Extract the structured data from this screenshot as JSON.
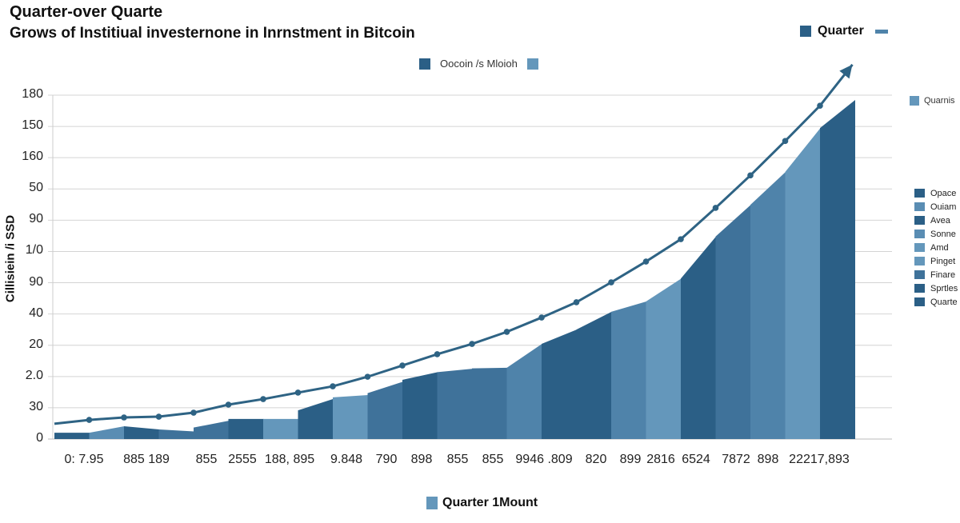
{
  "chart_data": {
    "type": "area",
    "title": "Quarter-over Quarte",
    "subtitle": "Grows of Institiual investernone in Inrnstment in Bitcoin",
    "ylabel": "Cillisiein /i SSD",
    "xlabel": "",
    "ylim": [
      0,
      180
    ],
    "grid": true,
    "y_tick_labels": [
      "180",
      "150",
      "160",
      "50",
      "90",
      "1/0",
      "90",
      "40",
      "20",
      "2.0",
      "30",
      "0"
    ],
    "x_tick_labels": [
      "0: 7.95",
      "885 189",
      "855",
      "2555",
      "188, 895",
      "9.848",
      "790",
      "898",
      "855",
      "855",
      "9946 .809",
      "820",
      "899",
      "2816",
      "6524",
      "7872",
      "898",
      "22217,893"
    ],
    "line_series": {
      "values": [
        8,
        10,
        11.3,
        11.7,
        13.8,
        18,
        20.9,
        24.3,
        27.6,
        32.6,
        38.5,
        44.4,
        49.8,
        56.1,
        63.6,
        71.6,
        82,
        92.9,
        104.6,
        121,
        138,
        156,
        174.5
      ],
      "arrow_end": 196,
      "color": "#2e6384"
    },
    "area_columns": [
      [
        3.3,
        3.3
      ],
      [
        3.3,
        6.7
      ],
      [
        6.7,
        5
      ],
      [
        5,
        4
      ],
      [
        6,
        9.6
      ],
      [
        10.5,
        10.5
      ],
      [
        10.5,
        10.5
      ],
      [
        15,
        21
      ],
      [
        21.8,
        23
      ],
      [
        24,
        30
      ],
      [
        31,
        35
      ],
      [
        35,
        36.8
      ],
      [
        37,
        37.3
      ],
      [
        37.3,
        49.8
      ],
      [
        49.8,
        57.3
      ],
      [
        57.3,
        66.6
      ],
      [
        66.6,
        72
      ],
      [
        72,
        84
      ],
      [
        84,
        106
      ],
      [
        106,
        122.6
      ],
      [
        122.6,
        139.8
      ],
      [
        139.8,
        162.8
      ],
      [
        162.8,
        177.5
      ]
    ],
    "column_colors": [
      "#2b5f86",
      "#5a8db3",
      "#2b5f86",
      "#3f729a",
      "#3f729a",
      "#2b5f86",
      "#6497bb",
      "#2b5f86",
      "#6497bb",
      "#3f729a",
      "#2b5f86",
      "#3f729a",
      "#3f729a",
      "#4f83aa",
      "#2b5f86",
      "#2b5f86",
      "#4f83aa",
      "#6497bb",
      "#2b5f86",
      "#3f729a",
      "#4f83aa",
      "#6497bb",
      "#2b5f86"
    ],
    "legend": {
      "top": "Quarter",
      "middle": "Oocoin /s Mloioh",
      "right_top": "Quarnis",
      "right_list": [
        "Opace",
        "Ouiam",
        "Avea",
        "Sonne",
        "Amd",
        "Pinget",
        "Finare",
        "Sprtles",
        "Quarte"
      ],
      "right_list_colors": [
        "#2b5f86",
        "#5a8db3",
        "#2b5f86",
        "#5a8db3",
        "#6497bb",
        "#6497bb",
        "#3f729a",
        "#2b5f86",
        "#2b5f86"
      ],
      "bottom": "Quarter 1Mount"
    }
  }
}
